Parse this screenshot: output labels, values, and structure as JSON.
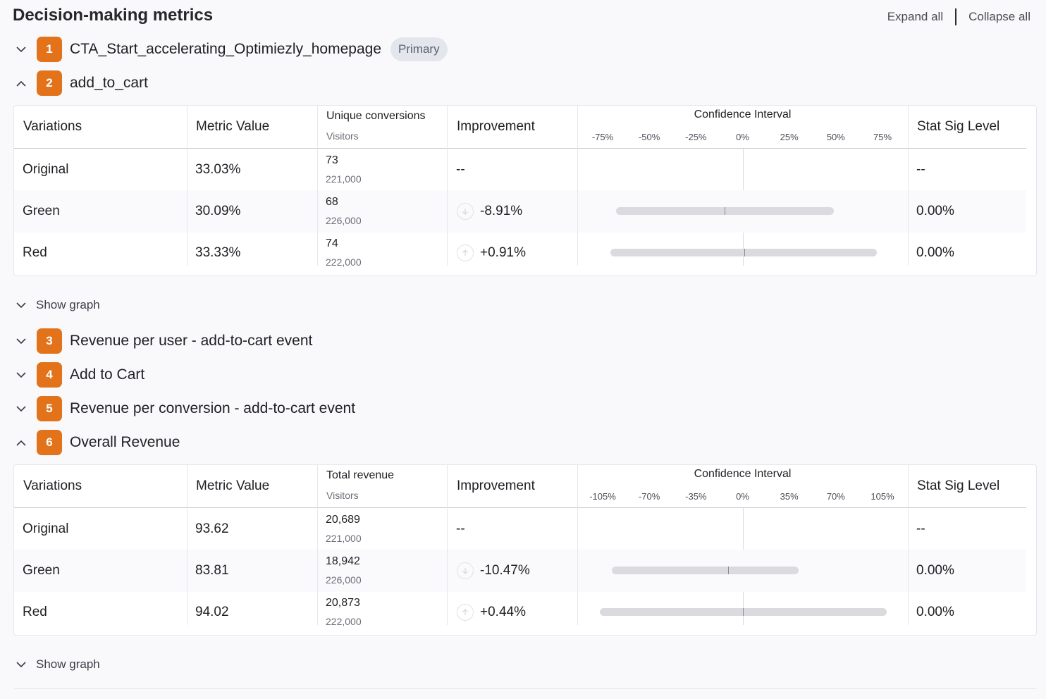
{
  "header": {
    "title": "Decision-making metrics",
    "expand_all": "Expand all",
    "collapse_all": "Collapse all"
  },
  "metrics": [
    {
      "num": "1",
      "name": "CTA_Start_accelerating_Optimiezly_homepage",
      "pill": "Primary",
      "expanded": false
    },
    {
      "num": "2",
      "name": "add_to_cart",
      "expanded": true
    },
    {
      "num": "3",
      "name": "Revenue per user - add-to-cart event",
      "expanded": false
    },
    {
      "num": "4",
      "name": "Add to Cart",
      "expanded": false
    },
    {
      "num": "5",
      "name": "Revenue per conversion - add-to-cart event",
      "expanded": false
    },
    {
      "num": "6",
      "name": "Overall Revenue",
      "expanded": true
    }
  ],
  "tables": [
    {
      "headers": {
        "variations": "Variations",
        "metric_value": "Metric Value",
        "conv_top": "Unique conversions",
        "conv_bottom": "Visitors",
        "improvement": "Improvement",
        "ci": "Confidence Interval",
        "stat_sig": "Stat Sig Level"
      },
      "ci_ticks": [
        "-75%",
        "-50%",
        "-25%",
        "0%",
        "25%",
        "50%",
        "75%"
      ],
      "ci_range": [
        -75,
        75
      ],
      "rows": [
        {
          "variation": "Original",
          "metric_value": "33.03%",
          "conversions": "73",
          "visitors": "221,000",
          "improvement": "--",
          "stat_sig": "--"
        },
        {
          "variation": "Green",
          "metric_value": "30.09%",
          "conversions": "68",
          "visitors": "226,000",
          "improvement": "-8.91%",
          "direction": "down",
          "ci_low": -68,
          "ci_high": 49,
          "ci_point": -9.5,
          "stat_sig": "0.00%"
        },
        {
          "variation": "Red",
          "metric_value": "33.33%",
          "conversions": "74",
          "visitors": "222,000",
          "improvement": "+0.91%",
          "direction": "up",
          "ci_low": -71,
          "ci_high": 72,
          "ci_point": 0.9,
          "stat_sig": "0.00%"
        }
      ],
      "show_graph": "Show graph"
    },
    {
      "headers": {
        "variations": "Variations",
        "metric_value": "Metric Value",
        "conv_top": "Total revenue",
        "conv_bottom": "Visitors",
        "improvement": "Improvement",
        "ci": "Confidence Interval",
        "stat_sig": "Stat Sig Level"
      },
      "ci_ticks": [
        "-105%",
        "-70%",
        "-35%",
        "0%",
        "35%",
        "70%",
        "105%"
      ],
      "ci_range": [
        -105,
        105
      ],
      "rows": [
        {
          "variation": "Original",
          "metric_value": "93.62",
          "conversions": "20,689",
          "visitors": "221,000",
          "improvement": "--",
          "stat_sig": "--"
        },
        {
          "variation": "Green",
          "metric_value": "83.81",
          "conversions": "18,942",
          "visitors": "226,000",
          "improvement": "-10.47%",
          "direction": "down",
          "ci_low": -98,
          "ci_high": 42,
          "ci_point": -11,
          "stat_sig": "0.00%"
        },
        {
          "variation": "Red",
          "metric_value": "94.02",
          "conversions": "20,873",
          "visitors": "222,000",
          "improvement": "+0.44%",
          "direction": "up",
          "ci_low": -107,
          "ci_high": 108,
          "ci_point": 0.4,
          "stat_sig": "0.00%"
        }
      ],
      "show_graph": "Show graph"
    }
  ]
}
